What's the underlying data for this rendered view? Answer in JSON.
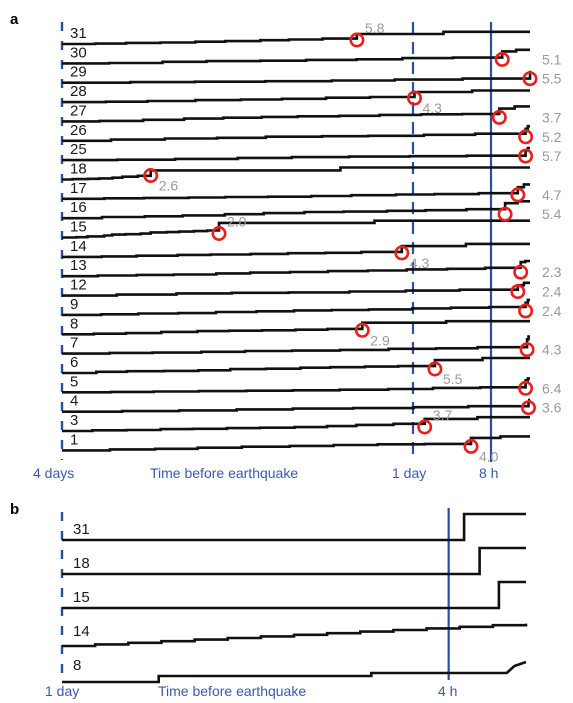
{
  "panel_a": {
    "label": "a",
    "rows": [
      {
        "label": "31",
        "mag": "5.8"
      },
      {
        "label": "30",
        "mag": "5.1"
      },
      {
        "label": "29",
        "mag": "5.5"
      },
      {
        "label": "28",
        "mag": "4.3"
      },
      {
        "label": "27",
        "mag": "3.7"
      },
      {
        "label": "26",
        "mag": "5.2"
      },
      {
        "label": "25",
        "mag": "5.7"
      },
      {
        "label": "18",
        "mag": "2.6"
      },
      {
        "label": "17",
        "mag": "4.7"
      },
      {
        "label": "16",
        "mag": "5.4"
      },
      {
        "label": "15",
        "mag": "2.0"
      },
      {
        "label": "14",
        "mag": "4.3"
      },
      {
        "label": "13",
        "mag": "2.3"
      },
      {
        "label": "12",
        "mag": "2.4"
      },
      {
        "label": "9",
        "mag": "2.4"
      },
      {
        "label": "8",
        "mag": "2.9"
      },
      {
        "label": "7",
        "mag": "4.3"
      },
      {
        "label": "6",
        "mag": "5.5"
      },
      {
        "label": "5",
        "mag": "6.4"
      },
      {
        "label": "4",
        "mag": "3.6"
      },
      {
        "label": "3",
        "mag": "3.7"
      },
      {
        "label": "1",
        "mag": "4.0"
      }
    ],
    "axis": {
      "left_label": "4 days",
      "center_label": "Time before earthquake",
      "day_label": "1 day",
      "hour_label": "8 h"
    }
  },
  "panel_b": {
    "label": "b",
    "rows": [
      {
        "label": "31"
      },
      {
        "label": "18"
      },
      {
        "label": "15"
      },
      {
        "label": "14"
      },
      {
        "label": "8"
      }
    ],
    "axis": {
      "left_label": "1 day",
      "center_label": "Time before earthquake",
      "hour_label": "4 h"
    }
  },
  "colors": {
    "trace": "#111111",
    "marker": "#e8201c",
    "axis": "#2b4fa0",
    "magnitude_text": "#9a9a9a"
  },
  "chart_data": [
    {
      "type": "line",
      "title": "",
      "x_unit": "hours before earthquake",
      "x_range": [
        96,
        0
      ],
      "reference_lines": [
        {
          "x": 24,
          "label": "1 day",
          "style": "dashed"
        },
        {
          "x": 8,
          "label": "8 h",
          "style": "solid"
        }
      ],
      "series": [
        {
          "name": "31",
          "marker_x": 35.5,
          "magnitude": 5.8
        },
        {
          "name": "30",
          "marker_x": 5.7,
          "magnitude": 5.1
        },
        {
          "name": "29",
          "marker_x": 0.0,
          "magnitude": 5.5
        },
        {
          "name": "28",
          "marker_x": 23.7,
          "magnitude": 4.3
        },
        {
          "name": "27",
          "marker_x": 6.3,
          "magnitude": 3.7
        },
        {
          "name": "26",
          "marker_x": 0.9,
          "magnitude": 5.2
        },
        {
          "name": "25",
          "marker_x": 0.9,
          "magnitude": 5.7
        },
        {
          "name": "18",
          "marker_x": 77.8,
          "magnitude": 2.6
        },
        {
          "name": "17",
          "marker_x": 2.5,
          "magnitude": 4.7
        },
        {
          "name": "16",
          "marker_x": 5.1,
          "magnitude": 5.4
        },
        {
          "name": "15",
          "marker_x": 63.8,
          "magnitude": 2.0
        },
        {
          "name": "14",
          "marker_x": 26.3,
          "magnitude": 4.3
        },
        {
          "name": "13",
          "marker_x": 1.9,
          "magnitude": 2.3
        },
        {
          "name": "12",
          "marker_x": 2.5,
          "magnitude": 2.4
        },
        {
          "name": "9",
          "marker_x": 0.9,
          "magnitude": 2.4
        },
        {
          "name": "8",
          "marker_x": 34.4,
          "magnitude": 2.9
        },
        {
          "name": "7",
          "marker_x": 0.6,
          "magnitude": 4.3
        },
        {
          "name": "6",
          "marker_x": 19.5,
          "magnitude": 5.5
        },
        {
          "name": "5",
          "marker_x": 0.9,
          "magnitude": 6.4
        },
        {
          "name": "4",
          "marker_x": 0.3,
          "magnitude": 3.6
        },
        {
          "name": "3",
          "marker_x": 21.6,
          "magnitude": 3.7
        },
        {
          "name": "1",
          "marker_x": 12.1,
          "magnitude": 4.0
        }
      ]
    },
    {
      "type": "line",
      "title": "",
      "x_unit": "hours before earthquake",
      "x_range": [
        24,
        0
      ],
      "reference_lines": [
        {
          "x": 4,
          "label": "4 h",
          "style": "solid"
        }
      ],
      "series": [
        {
          "name": "31"
        },
        {
          "name": "18"
        },
        {
          "name": "15"
        },
        {
          "name": "14"
        },
        {
          "name": "8"
        }
      ]
    }
  ]
}
